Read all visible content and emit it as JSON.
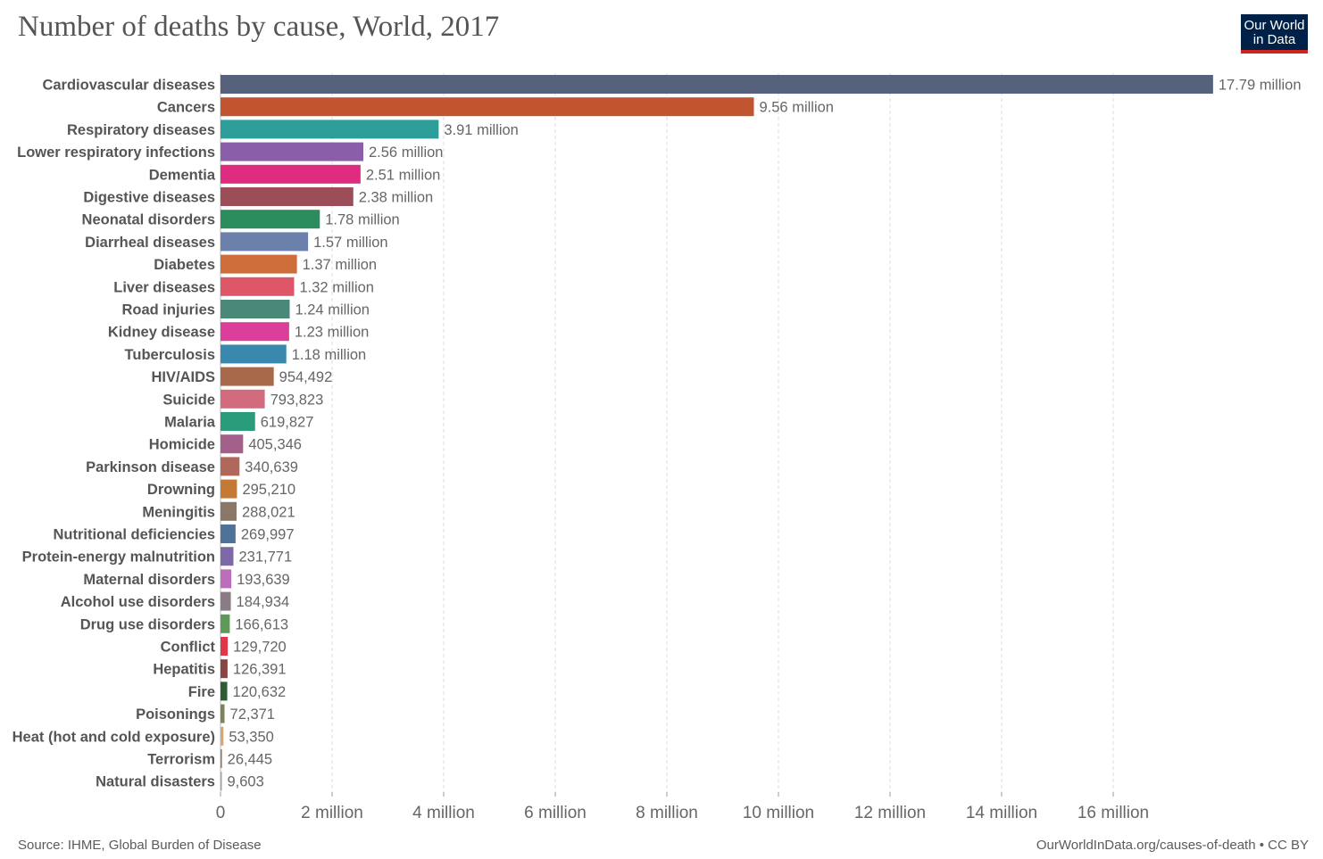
{
  "title": "Number of deaths by cause, World, 2017",
  "logo": {
    "line1": "Our World",
    "line2": "in Data"
  },
  "footer": {
    "source": "Source: IHME, Global Burden of Disease",
    "link": "OurWorldInData.org/causes-of-death • CC BY"
  },
  "chart_data": {
    "type": "bar",
    "orientation": "horizontal",
    "title": "Number of deaths by cause, World, 2017",
    "xlabel": "",
    "ylabel": "",
    "xlim": [
      0,
      17790000
    ],
    "grid": true,
    "x_ticks": [
      {
        "value": 0,
        "label": "0"
      },
      {
        "value": 2000000,
        "label": "2 million"
      },
      {
        "value": 4000000,
        "label": "4 million"
      },
      {
        "value": 6000000,
        "label": "6 million"
      },
      {
        "value": 8000000,
        "label": "8 million"
      },
      {
        "value": 10000000,
        "label": "10 million"
      },
      {
        "value": 12000000,
        "label": "12 million"
      },
      {
        "value": 14000000,
        "label": "14 million"
      },
      {
        "value": 16000000,
        "label": "16 million"
      }
    ],
    "bars": [
      {
        "category": "Cardiovascular diseases",
        "value": 17790000,
        "label": "17.79 million",
        "color": "#56627c"
      },
      {
        "category": "Cancers",
        "value": 9560000,
        "label": "9.56 million",
        "color": "#c05530"
      },
      {
        "category": "Respiratory diseases",
        "value": 3910000,
        "label": "3.91 million",
        "color": "#2c9d98"
      },
      {
        "category": "Lower respiratory infections",
        "value": 2560000,
        "label": "2.56 million",
        "color": "#8a5ea8"
      },
      {
        "category": "Dementia",
        "value": 2510000,
        "label": "2.51 million",
        "color": "#df2b80"
      },
      {
        "category": "Digestive diseases",
        "value": 2380000,
        "label": "2.38 million",
        "color": "#9c4e58"
      },
      {
        "category": "Neonatal disorders",
        "value": 1780000,
        "label": "1.78 million",
        "color": "#2b8c5d"
      },
      {
        "category": "Diarrheal diseases",
        "value": 1570000,
        "label": "1.57 million",
        "color": "#6b80aa"
      },
      {
        "category": "Diabetes",
        "value": 1370000,
        "label": "1.37 million",
        "color": "#cd6d39"
      },
      {
        "category": "Liver diseases",
        "value": 1320000,
        "label": "1.32 million",
        "color": "#dd5768"
      },
      {
        "category": "Road injuries",
        "value": 1240000,
        "label": "1.24 million",
        "color": "#4a8877"
      },
      {
        "category": "Kidney disease",
        "value": 1230000,
        "label": "1.23 million",
        "color": "#db3f9a"
      },
      {
        "category": "Tuberculosis",
        "value": 1180000,
        "label": "1.18 million",
        "color": "#3a88ad"
      },
      {
        "category": "HIV/AIDS",
        "value": 954492,
        "label": "954,492",
        "color": "#a8694b"
      },
      {
        "category": "Suicide",
        "value": 793823,
        "label": "793,823",
        "color": "#d36b7e"
      },
      {
        "category": "Malaria",
        "value": 619827,
        "label": "619,827",
        "color": "#2b9c7b"
      },
      {
        "category": "Homicide",
        "value": 405346,
        "label": "405,346",
        "color": "#a2608a"
      },
      {
        "category": "Parkinson disease",
        "value": 340639,
        "label": "340,639",
        "color": "#b0685a"
      },
      {
        "category": "Drowning",
        "value": 295210,
        "label": "295,210",
        "color": "#c47a36"
      },
      {
        "category": "Meningitis",
        "value": 288021,
        "label": "288,021",
        "color": "#8a7767"
      },
      {
        "category": "Nutritional deficiencies",
        "value": 269997,
        "label": "269,997",
        "color": "#4f7398"
      },
      {
        "category": "Protein-energy malnutrition",
        "value": 231771,
        "label": "231,771",
        "color": "#7d68a8"
      },
      {
        "category": "Maternal disorders",
        "value": 193639,
        "label": "193,639",
        "color": "#bb6cbb"
      },
      {
        "category": "Alcohol use disorders",
        "value": 184934,
        "label": "184,934",
        "color": "#8b7b84"
      },
      {
        "category": "Drug use disorders",
        "value": 166613,
        "label": "166,613",
        "color": "#5c9a57"
      },
      {
        "category": "Conflict",
        "value": 129720,
        "label": "129,720",
        "color": "#e0364a"
      },
      {
        "category": "Hepatitis",
        "value": 126391,
        "label": "126,391",
        "color": "#8a4444"
      },
      {
        "category": "Fire",
        "value": 120632,
        "label": "120,632",
        "color": "#2e5c35"
      },
      {
        "category": "Poisonings",
        "value": 72371,
        "label": "72,371",
        "color": "#7b8454"
      },
      {
        "category": "Heat (hot and cold exposure)",
        "value": 53350,
        "label": "53,350",
        "color": "#d9a672"
      },
      {
        "category": "Terrorism",
        "value": 26445,
        "label": "26,445",
        "color": "#9a7a6a"
      },
      {
        "category": "Natural disasters",
        "value": 9603,
        "label": "9,603",
        "color": "#9ca0a8"
      }
    ]
  }
}
